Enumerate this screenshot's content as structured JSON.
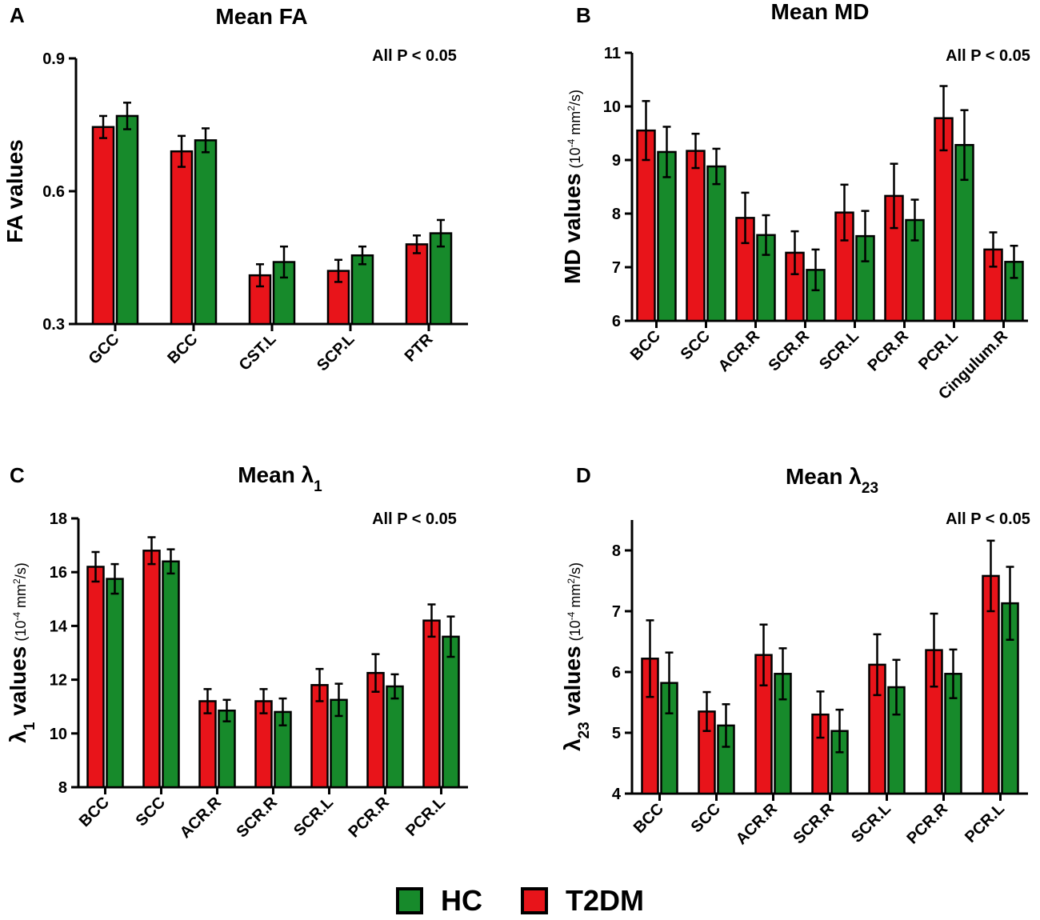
{
  "colors": {
    "t2dm": "#e8141a",
    "hc": "#178a2b",
    "axis": "#000000"
  },
  "legend": {
    "hc_label": "HC",
    "t2dm_label": "T2DM"
  },
  "chart_data": [
    {
      "id": "A",
      "panel_label": "A",
      "type": "bar",
      "title": "Mean FA",
      "annotation": "All P < 0.05",
      "ylabel": "FA values",
      "ylabel_unit": "",
      "ylim": [
        0.3,
        0.9
      ],
      "yticks": [
        0.3,
        0.6,
        0.9
      ],
      "ytick_labels": [
        "0.3",
        "0.6",
        "0.9"
      ],
      "categories": [
        "GCC",
        "BCC",
        "CST.L",
        "SCP.L",
        "PTR"
      ],
      "series": [
        {
          "name": "T2DM",
          "values": [
            0.745,
            0.69,
            0.41,
            0.42,
            0.48
          ],
          "errors": [
            0.025,
            0.035,
            0.025,
            0.025,
            0.02
          ]
        },
        {
          "name": "HC",
          "values": [
            0.77,
            0.715,
            0.44,
            0.455,
            0.505
          ],
          "errors": [
            0.03,
            0.027,
            0.035,
            0.02,
            0.03
          ]
        }
      ]
    },
    {
      "id": "B",
      "panel_label": "B",
      "type": "bar",
      "title": "Mean MD",
      "annotation": "All P < 0.05",
      "ylabel": "MD values",
      "ylabel_unit": "(10-4 mm2/s)",
      "ylim": [
        6,
        11
      ],
      "yticks": [
        6,
        7,
        8,
        9,
        10,
        11
      ],
      "ytick_labels": [
        "6",
        "7",
        "8",
        "9",
        "10",
        "11"
      ],
      "categories": [
        "BCC",
        "SCC",
        "ACR.R",
        "SCR.R",
        "SCR.L",
        "PCR.R",
        "PCR.L",
        "Cingulum.R"
      ],
      "series": [
        {
          "name": "T2DM",
          "values": [
            9.55,
            9.17,
            7.92,
            7.27,
            8.02,
            8.33,
            9.78,
            7.33
          ],
          "errors": [
            0.55,
            0.32,
            0.47,
            0.4,
            0.52,
            0.6,
            0.6,
            0.32
          ]
        },
        {
          "name": "HC",
          "values": [
            9.15,
            8.88,
            7.6,
            6.95,
            7.58,
            7.88,
            9.28,
            7.1
          ],
          "errors": [
            0.47,
            0.33,
            0.37,
            0.38,
            0.47,
            0.38,
            0.65,
            0.3
          ]
        }
      ]
    },
    {
      "id": "C",
      "panel_label": "C",
      "type": "bar",
      "title": "Mean λ1",
      "annotation": "All P < 0.05",
      "ylabel": "λ1 values",
      "ylabel_unit": "(10-4 mm2/s)",
      "ylim": [
        8,
        18
      ],
      "yticks": [
        8,
        10,
        12,
        14,
        16,
        18
      ],
      "ytick_labels": [
        "8",
        "10",
        "12",
        "14",
        "16",
        "18"
      ],
      "categories": [
        "BCC",
        "SCC",
        "ACR.R",
        "SCR.R",
        "SCR.L",
        "PCR.R",
        "PCR.L"
      ],
      "series": [
        {
          "name": "T2DM",
          "values": [
            16.2,
            16.8,
            11.2,
            11.2,
            11.8,
            12.25,
            14.2
          ],
          "errors": [
            0.55,
            0.5,
            0.45,
            0.45,
            0.6,
            0.7,
            0.6
          ]
        },
        {
          "name": "HC",
          "values": [
            15.75,
            16.4,
            10.85,
            10.8,
            11.25,
            11.75,
            13.6
          ],
          "errors": [
            0.55,
            0.45,
            0.4,
            0.5,
            0.6,
            0.45,
            0.75
          ]
        }
      ]
    },
    {
      "id": "D",
      "panel_label": "D",
      "type": "bar",
      "title": "Mean λ23",
      "annotation": "All P < 0.05",
      "ylabel": "λ23 values",
      "ylabel_unit": "(10-4 mm2/s)",
      "ylim": [
        4,
        8.5
      ],
      "yticks": [
        4,
        5,
        6,
        7,
        8
      ],
      "ytick_labels": [
        "4",
        "5",
        "6",
        "7",
        "8"
      ],
      "categories": [
        "BCC",
        "SCC",
        "ACR.R",
        "SCR.R",
        "SCR.L",
        "PCR.R",
        "PCR.L"
      ],
      "series": [
        {
          "name": "T2DM",
          "values": [
            6.22,
            5.35,
            6.28,
            5.3,
            6.12,
            6.36,
            7.58
          ],
          "errors": [
            0.63,
            0.32,
            0.5,
            0.38,
            0.5,
            0.6,
            0.58
          ]
        },
        {
          "name": "HC",
          "values": [
            5.82,
            5.12,
            5.97,
            5.03,
            5.75,
            5.97,
            7.13
          ],
          "errors": [
            0.5,
            0.35,
            0.42,
            0.35,
            0.45,
            0.4,
            0.6
          ]
        }
      ]
    }
  ]
}
